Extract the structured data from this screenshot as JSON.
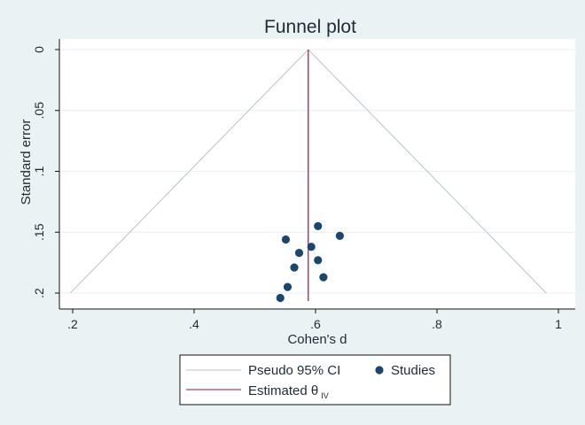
{
  "chart_data": {
    "type": "scatter",
    "title": "Funnel plot",
    "xlabel": "Cohen's d",
    "ylabel": "Standard error",
    "xlim": [
      0.19,
      1.0
    ],
    "ylim": [
      0.205,
      0.0
    ],
    "y_inverted": true,
    "x_ticks": [
      0.2,
      0.4,
      0.6,
      0.8,
      1.0
    ],
    "x_tick_labels": [
      ".2",
      ".4",
      ".6",
      ".8",
      "1"
    ],
    "y_ticks": [
      0.0,
      0.05,
      0.1,
      0.15,
      0.2
    ],
    "y_tick_labels": [
      "0",
      ".05",
      ".1",
      ".15",
      ".2"
    ],
    "grid": "horizontal",
    "estimate": 0.588,
    "ci_bottom_se": 0.2,
    "colors": {
      "background": "#eaf2f3",
      "plot_area": "#ffffff",
      "ci_line": "#b9c3c7",
      "estimate_line": "#8b1a3a",
      "points": "#1a476f",
      "grid": "#e9eef1"
    },
    "series": [
      {
        "name": "Studies",
        "points": [
          {
            "x": 0.604,
            "y": 0.145
          },
          {
            "x": 0.64,
            "y": 0.153
          },
          {
            "x": 0.551,
            "y": 0.156
          },
          {
            "x": 0.593,
            "y": 0.162
          },
          {
            "x": 0.573,
            "y": 0.167
          },
          {
            "x": 0.604,
            "y": 0.173
          },
          {
            "x": 0.565,
            "y": 0.179
          },
          {
            "x": 0.613,
            "y": 0.187
          },
          {
            "x": 0.554,
            "y": 0.195
          },
          {
            "x": 0.542,
            "y": 0.204
          }
        ]
      }
    ],
    "legend": {
      "ci_label": "Pseudo 95% CI",
      "studies_label": "Studies",
      "estimate_label": "Estimated θ",
      "estimate_subscript": "IV"
    }
  }
}
